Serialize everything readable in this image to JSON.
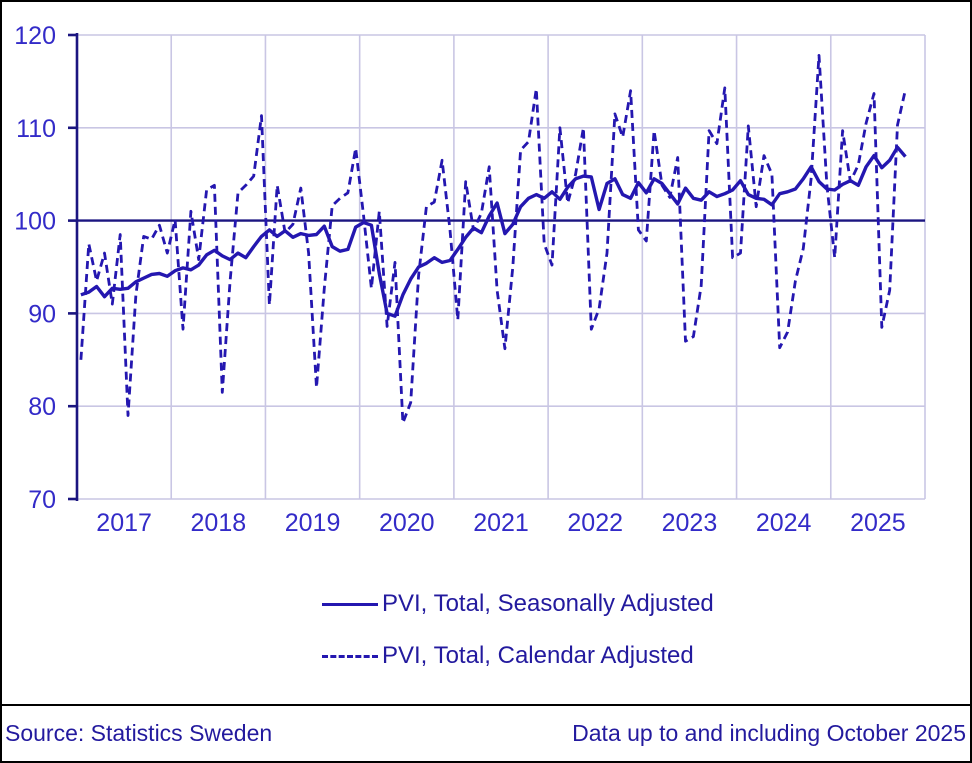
{
  "chart_data": {
    "type": "line",
    "title": "",
    "xlabel": "",
    "ylabel": "",
    "ylim": [
      70,
      120
    ],
    "y_ticks": [
      70,
      80,
      90,
      100,
      110,
      120
    ],
    "reference_line": 100,
    "grid": "both",
    "legend_position": "bottom",
    "x_start": "2017-01",
    "x_end": "2025-10",
    "x_axis_months": 108,
    "year_labels": [
      "2017",
      "2018",
      "2019",
      "2020",
      "2021",
      "2022",
      "2023",
      "2024",
      "2025"
    ],
    "series": [
      {
        "name": "PVI, Total, Seasonally Adjusted",
        "style": "solid",
        "values": [
          92.0,
          92.3,
          92.9,
          91.8,
          92.7,
          92.6,
          92.7,
          93.4,
          93.8,
          94.2,
          94.3,
          94.0,
          94.6,
          94.9,
          94.7,
          95.2,
          96.3,
          96.8,
          96.2,
          95.8,
          96.5,
          96.0,
          97.2,
          98.3,
          99.0,
          98.3,
          98.9,
          98.2,
          98.6,
          98.4,
          98.5,
          99.4,
          97.2,
          96.7,
          96.9,
          99.3,
          99.8,
          99.5,
          94.3,
          90.0,
          89.7,
          92.0,
          93.7,
          95.0,
          95.4,
          96.0,
          95.5,
          95.7,
          96.9,
          98.2,
          99.2,
          98.7,
          100.5,
          101.9,
          98.6,
          99.6,
          101.5,
          102.4,
          102.8,
          102.4,
          103.1,
          102.3,
          103.6,
          104.5,
          104.8,
          104.7,
          101.2,
          104.0,
          104.5,
          102.8,
          102.4,
          104.1,
          103.0,
          104.5,
          104.0,
          102.9,
          101.8,
          103.5,
          102.4,
          102.2,
          103.1,
          102.6,
          102.9,
          103.3,
          104.3,
          102.8,
          102.4,
          102.3,
          101.7,
          102.9,
          103.1,
          103.4,
          104.5,
          105.8,
          104.2,
          103.4,
          103.3,
          103.9,
          104.3,
          103.8,
          105.8,
          107.0,
          105.7,
          106.5,
          107.9,
          106.9
        ]
      },
      {
        "name": "PVI, Total, Calendar Adjusted",
        "style": "dashed",
        "values": [
          85.0,
          97.5,
          93.5,
          96.5,
          91.0,
          98.5,
          79.0,
          92.0,
          98.3,
          98.0,
          99.5,
          96.5,
          100.1,
          88.3,
          101.0,
          95.8,
          103.3,
          103.8,
          81.5,
          93.5,
          103.0,
          103.8,
          104.8,
          111.3,
          90.9,
          103.8,
          98.7,
          99.6,
          103.5,
          96.5,
          82.0,
          92.7,
          101.6,
          102.4,
          103.0,
          107.8,
          100.5,
          92.7,
          101.0,
          88.6,
          95.5,
          78.2,
          80.4,
          94.1,
          101.5,
          102.0,
          106.5,
          99.0,
          89.3,
          104.2,
          99.0,
          100.8,
          105.8,
          92.5,
          86.2,
          95.0,
          107.6,
          108.5,
          114.2,
          97.5,
          95.2,
          110.0,
          101.9,
          105.0,
          110.0,
          88.3,
          90.5,
          96.5,
          111.5,
          109.0,
          114.0,
          99.0,
          97.8,
          109.7,
          103.8,
          102.5,
          106.8,
          87.0,
          87.5,
          93.0,
          109.7,
          108.3,
          114.3,
          96.0,
          96.5,
          110.2,
          101.5,
          107.0,
          105.0,
          86.3,
          88.0,
          93.5,
          97.0,
          104.5,
          117.8,
          103.8,
          96.0,
          109.7,
          104.2,
          106.0,
          110.5,
          113.7,
          88.5,
          92.5,
          110.3,
          114.1
        ]
      }
    ]
  },
  "legend": {
    "items": [
      {
        "label": "PVI, Total, Seasonally Adjusted",
        "style": "solid"
      },
      {
        "label": "PVI, Total, Calendar Adjusted",
        "style": "dashed"
      }
    ]
  },
  "footer": {
    "source": "Source: Statistics Sweden",
    "note": "Data up to and including October 2025"
  },
  "colors": {
    "line": "#2417b0",
    "tick_label": "#332bc8",
    "axis_dark": "#1b1580",
    "grid": "#c9c6e4",
    "text": "#231a9e",
    "border": "#000000"
  }
}
